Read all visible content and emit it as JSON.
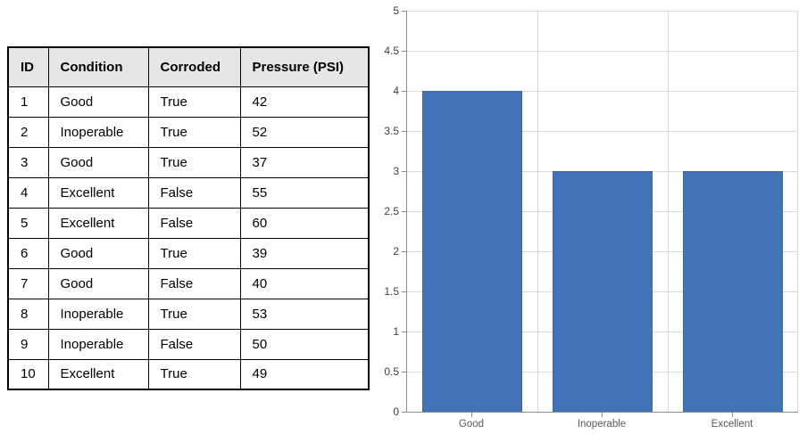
{
  "table": {
    "headers": [
      "ID",
      "Condition",
      "Corroded",
      "Pressure (PSI)"
    ],
    "rows": [
      [
        "1",
        "Good",
        "True",
        "42"
      ],
      [
        "2",
        "Inoperable",
        "True",
        "52"
      ],
      [
        "3",
        "Good",
        "True",
        "37"
      ],
      [
        "4",
        "Excellent",
        "False",
        "55"
      ],
      [
        "5",
        "Excellent",
        "False",
        "60"
      ],
      [
        "6",
        "Good",
        "True",
        "39"
      ],
      [
        "7",
        "Good",
        "False",
        "40"
      ],
      [
        "8",
        "Inoperable",
        "True",
        "53"
      ],
      [
        "9",
        "Inoperable",
        "False",
        "50"
      ],
      [
        "10",
        "Excellent",
        "True",
        "49"
      ]
    ]
  },
  "chart_data": {
    "type": "bar",
    "categories": [
      "Good",
      "Inoperable",
      "Excellent"
    ],
    "values": [
      4,
      3,
      3
    ],
    "title": "",
    "xlabel": "",
    "ylabel": "",
    "ylim": [
      0,
      5
    ],
    "ytick_step": 0.5,
    "ytick_labels": [
      "0",
      "0.5",
      "1",
      "1.5",
      "2",
      "2.5",
      "3",
      "3.5",
      "4",
      "4.5",
      "5"
    ],
    "grid": true,
    "legend_position": "none",
    "bar_color": "#4173B6",
    "bar_border_color": "#3A67AC",
    "gridline_color": "#D9D9D9",
    "axis_color": "#8C8C8C",
    "ytick_label_color": "#404040",
    "xtick_label_color": "#595959"
  }
}
